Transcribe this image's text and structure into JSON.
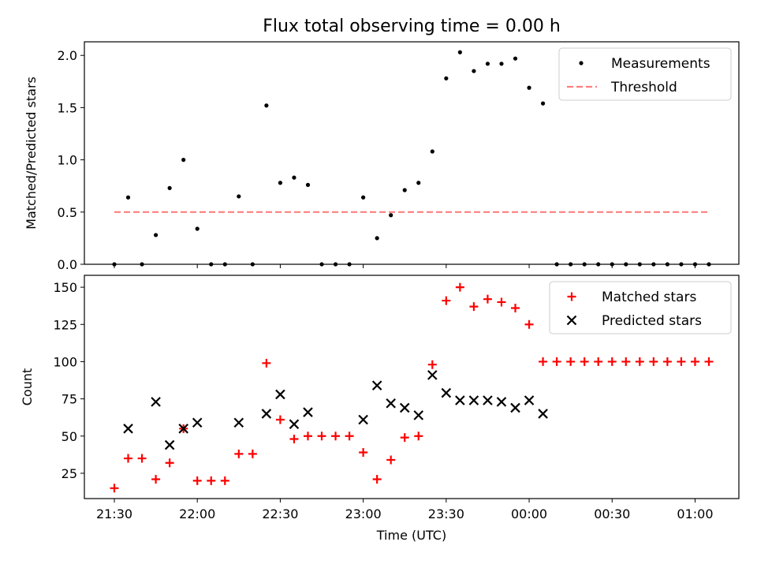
{
  "title": "Flux total observing time = 0.00 h",
  "colors": {
    "measurement": "#000000",
    "threshold": "#ff7f7f",
    "matched": "#ff0000",
    "predicted": "#000000"
  },
  "chart_data": [
    {
      "type": "scatter",
      "ylabel": "Matched/Predicted stars",
      "xlim": [
        "21:30",
        "01:05"
      ],
      "ylim": [
        0,
        2.13
      ],
      "yticks": [
        0.0,
        0.5,
        1.0,
        1.5,
        2.0
      ],
      "ytick_labels": [
        "0.0",
        "0.5",
        "1.0",
        "1.5",
        "2.0"
      ],
      "legend": {
        "position": "top-right",
        "entries": [
          "Measurements",
          "Threshold"
        ]
      },
      "series": [
        {
          "name": "Measurements",
          "marker": "dot",
          "x": [
            "21:30",
            "21:35",
            "21:40",
            "21:45",
            "21:50",
            "21:55",
            "22:00",
            "22:05",
            "22:10",
            "22:15",
            "22:20",
            "22:25",
            "22:30",
            "22:35",
            "22:40",
            "22:45",
            "22:50",
            "22:55",
            "23:00",
            "23:05",
            "23:10",
            "23:15",
            "23:20",
            "23:25",
            "23:30",
            "23:35",
            "23:40",
            "23:45",
            "23:50",
            "23:55",
            "00:00",
            "00:05",
            "00:10",
            "00:15",
            "00:20",
            "00:25",
            "00:30",
            "00:35",
            "00:40",
            "00:45",
            "00:50",
            "00:55",
            "01:00",
            "01:05"
          ],
          "y": [
            0,
            0.64,
            0,
            0.28,
            0.73,
            1.0,
            0.34,
            0,
            0,
            0.65,
            0,
            1.52,
            0.78,
            0.83,
            0.76,
            0,
            0,
            0,
            0.64,
            0.25,
            0.47,
            0.71,
            0.78,
            1.08,
            1.78,
            2.03,
            1.85,
            1.92,
            1.92,
            1.97,
            1.69,
            1.54,
            0,
            0,
            0,
            0,
            0,
            0,
            0,
            0,
            0,
            0,
            0,
            0
          ]
        },
        {
          "name": "Threshold",
          "marker": "dashed-line",
          "x": [
            "21:30",
            "01:05"
          ],
          "y": [
            0.5,
            0.5
          ]
        }
      ]
    },
    {
      "type": "scatter",
      "xlabel": "Time (UTC)",
      "ylabel": "Count",
      "xlim": [
        "21:30",
        "01:05"
      ],
      "xticks": [
        "21:30",
        "22:00",
        "22:30",
        "23:00",
        "23:30",
        "00:00",
        "00:30",
        "01:00"
      ],
      "ylim": [
        8,
        158
      ],
      "yticks": [
        25,
        50,
        75,
        100,
        125,
        150
      ],
      "legend": {
        "position": "top-right",
        "entries": [
          "Matched stars",
          "Predicted stars"
        ]
      },
      "series": [
        {
          "name": "Matched stars",
          "marker": "plus",
          "x": [
            "21:30",
            "21:35",
            "21:40",
            "21:45",
            "21:50",
            "21:55",
            "22:00",
            "22:05",
            "22:10",
            "22:15",
            "22:20",
            "22:25",
            "22:30",
            "22:35",
            "22:40",
            "22:45",
            "22:50",
            "22:55",
            "23:00",
            "23:05",
            "23:10",
            "23:15",
            "23:20",
            "23:25",
            "23:30",
            "23:35",
            "23:40",
            "23:45",
            "23:50",
            "23:55",
            "00:00",
            "00:05",
            "00:10",
            "00:15",
            "00:20",
            "00:25",
            "00:30",
            "00:35",
            "00:40",
            "00:45",
            "00:50",
            "00:55",
            "01:00",
            "01:05"
          ],
          "y": [
            15,
            35,
            35,
            21,
            32,
            55,
            20,
            20,
            20,
            38,
            38,
            99,
            61,
            48,
            50,
            50,
            50,
            50,
            39,
            21,
            34,
            49,
            50,
            98,
            141,
            150,
            137,
            142,
            140,
            136,
            125,
            100,
            100,
            100,
            100,
            100,
            100,
            100,
            100,
            100,
            100,
            100,
            100,
            100
          ]
        },
        {
          "name": "Predicted stars",
          "marker": "x",
          "x": [
            "21:35",
            "21:45",
            "21:50",
            "21:55",
            "22:00",
            "22:15",
            "22:25",
            "22:30",
            "22:35",
            "22:40",
            "23:00",
            "23:05",
            "23:10",
            "23:15",
            "23:20",
            "23:25",
            "23:30",
            "23:35",
            "23:40",
            "23:45",
            "23:50",
            "23:55",
            "00:00",
            "00:05"
          ],
          "y": [
            55,
            73,
            44,
            55,
            59,
            59,
            65,
            78,
            58,
            66,
            61,
            84,
            72,
            69,
            64,
            91,
            79,
            74,
            74,
            74,
            73,
            69,
            74,
            65
          ]
        }
      ]
    }
  ]
}
